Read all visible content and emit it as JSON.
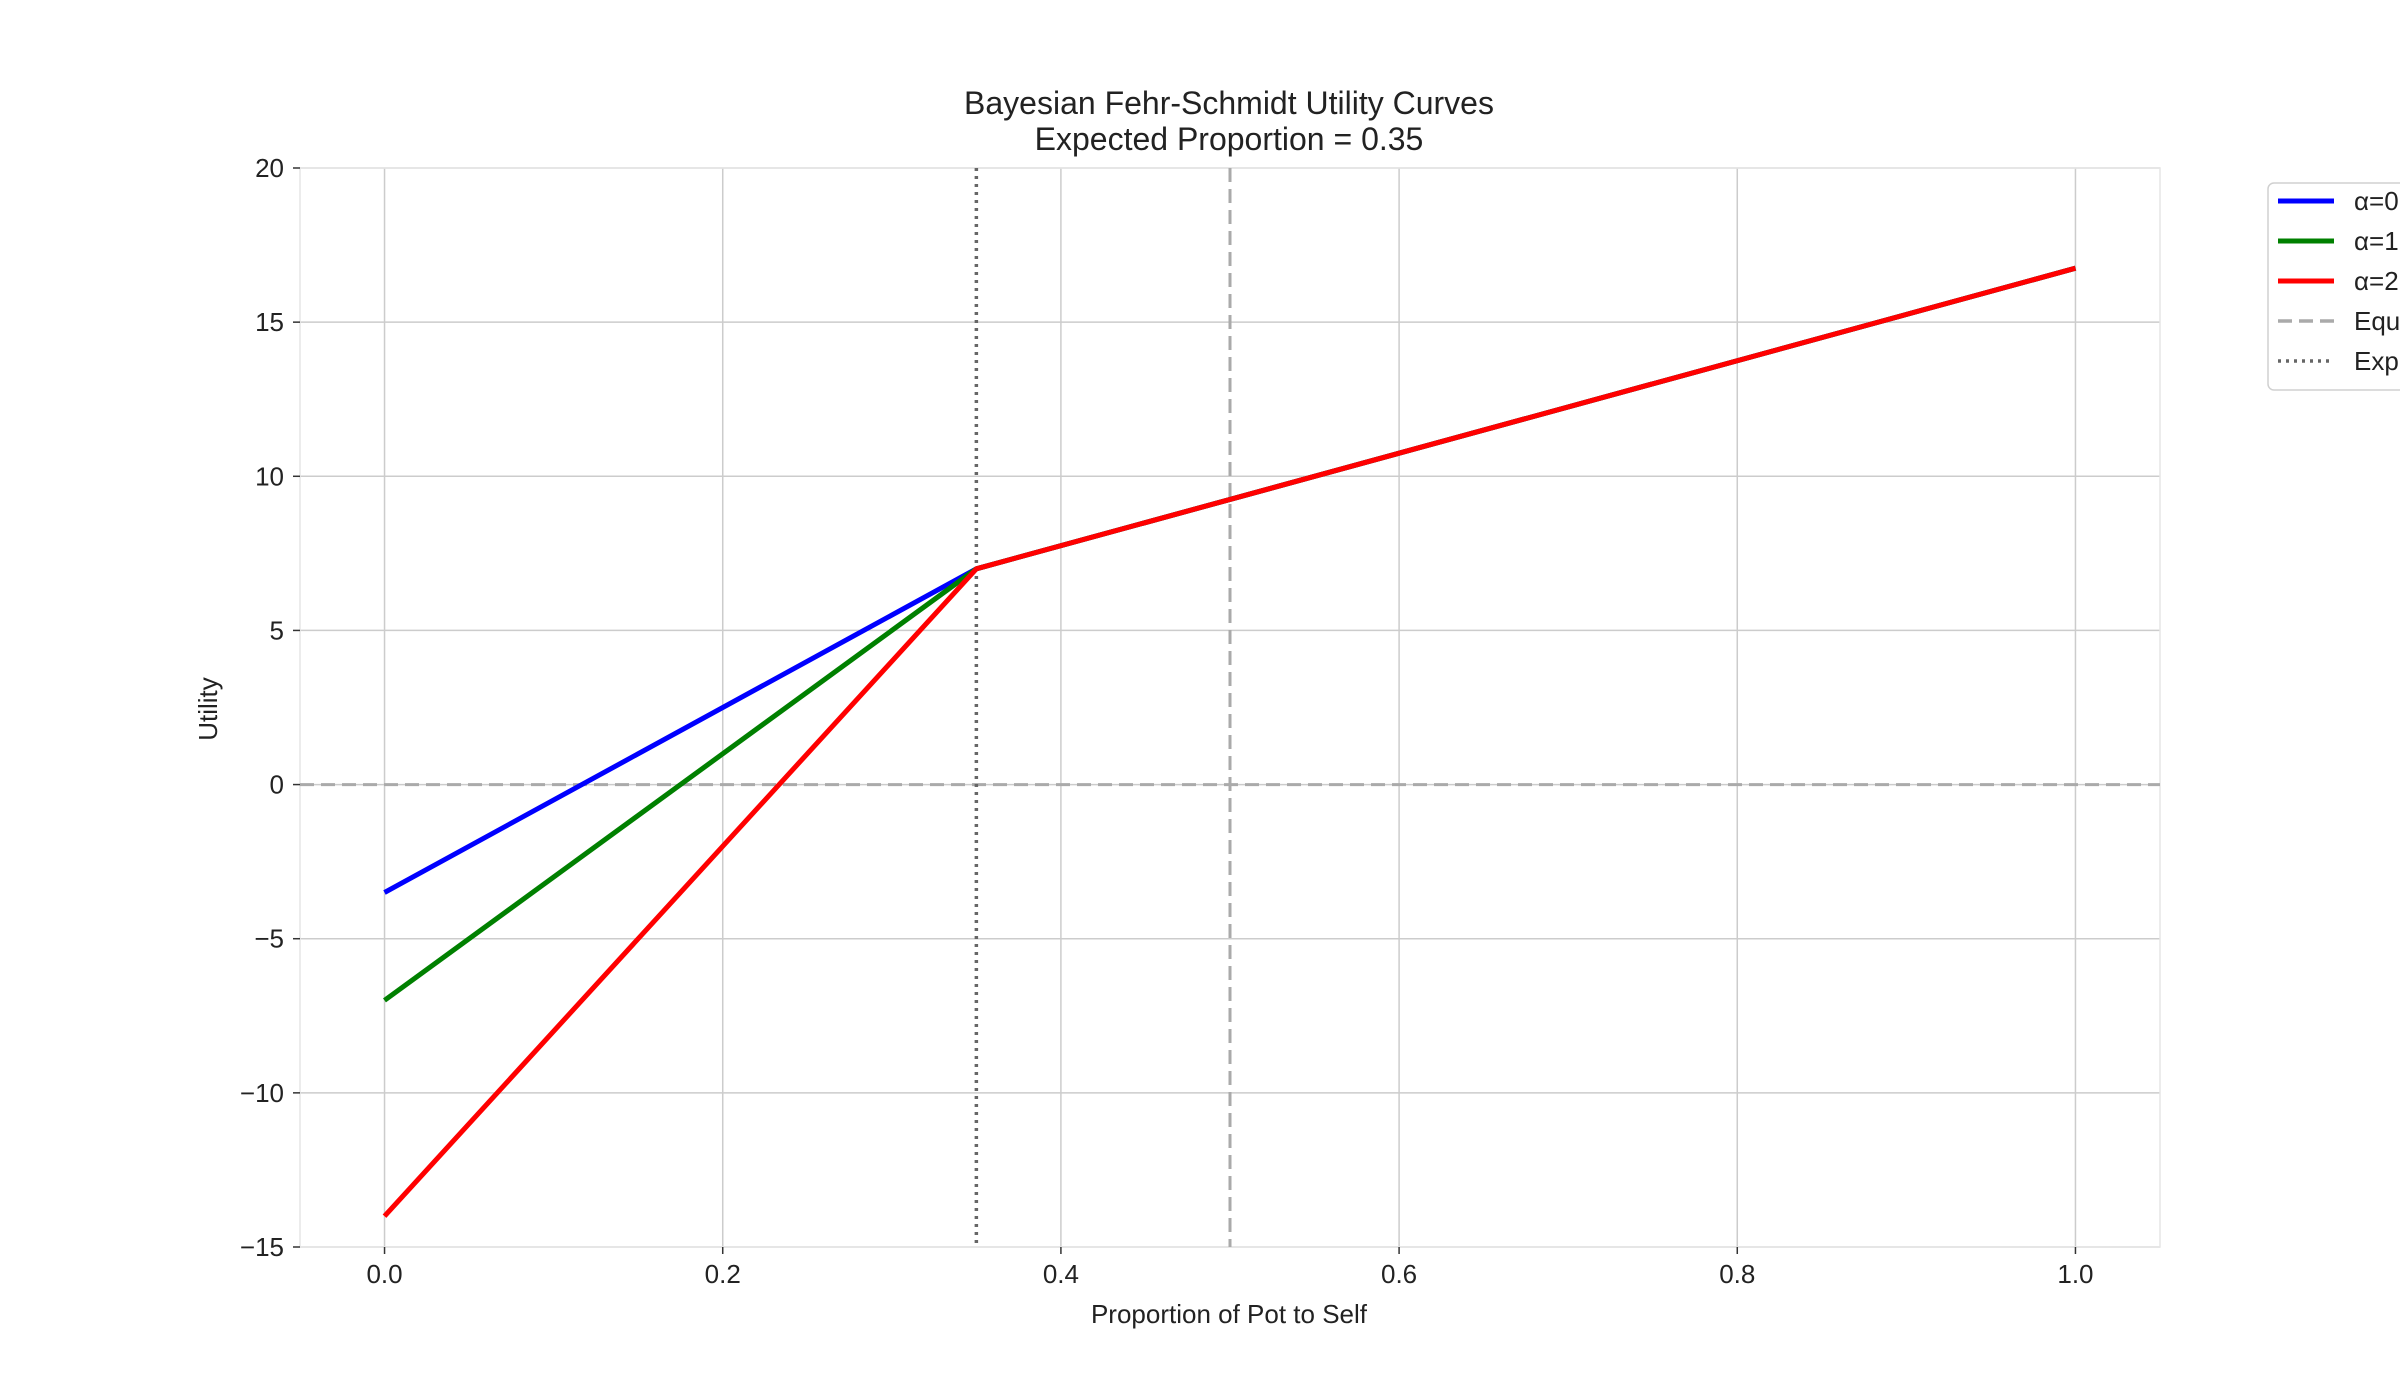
{
  "chart_data": {
    "type": "line",
    "title": "Bayesian Fehr-Schmidt Utility Curves",
    "subtitle": "Expected Proportion = 0.35",
    "xlabel": "Proportion of Pot to Self",
    "ylabel": "Utility",
    "xlim": [
      -0.05,
      1.05
    ],
    "ylim": [
      -15,
      20
    ],
    "xticks": [
      0.0,
      0.2,
      0.4,
      0.6,
      0.8,
      1.0
    ],
    "xtick_labels": [
      "0.0",
      "0.2",
      "0.4",
      "0.6",
      "0.8",
      "1.0"
    ],
    "yticks": [
      -15,
      -10,
      -5,
      0,
      5,
      10,
      15,
      20
    ],
    "ytick_labels": [
      "−15",
      "−10",
      "−5",
      "0",
      "5",
      "10",
      "15",
      "20"
    ],
    "grid": true,
    "legend_position": "upper-right-outside",
    "series": [
      {
        "name": "α=0",
        "color": "#0000ff",
        "style": "solid",
        "points": [
          [
            0.0,
            -3.5
          ],
          [
            0.35,
            7.0
          ],
          [
            1.0,
            16.75
          ]
        ]
      },
      {
        "name": "α=1",
        "color": "#008000",
        "style": "solid",
        "points": [
          [
            0.0,
            -7.0
          ],
          [
            0.35,
            7.0
          ],
          [
            1.0,
            16.75
          ]
        ]
      },
      {
        "name": "α=2",
        "color": "#ff0000",
        "style": "solid",
        "points": [
          [
            0.0,
            -14.0
          ],
          [
            0.35,
            7.0
          ],
          [
            1.0,
            16.75
          ]
        ]
      }
    ],
    "reference_lines": [
      {
        "name": "Equ",
        "orientation": "horizontal",
        "value": 0,
        "color": "#aaaaaa",
        "style": "dashed"
      },
      {
        "name": "Equ",
        "orientation": "vertical",
        "value": 0.5,
        "color": "#aaaaaa",
        "style": "dashed"
      },
      {
        "name": "Exp",
        "orientation": "vertical",
        "value": 0.35,
        "color": "#666666",
        "style": "dotted"
      }
    ],
    "legend": [
      {
        "label": "α=0",
        "color": "#0000ff",
        "style": "solid"
      },
      {
        "label": "α=1",
        "color": "#008000",
        "style": "solid"
      },
      {
        "label": "α=2",
        "color": "#ff0000",
        "style": "solid"
      },
      {
        "label": "Equ",
        "color": "#aaaaaa",
        "style": "dashed"
      },
      {
        "label": "Exp",
        "color": "#666666",
        "style": "dotted"
      }
    ]
  }
}
